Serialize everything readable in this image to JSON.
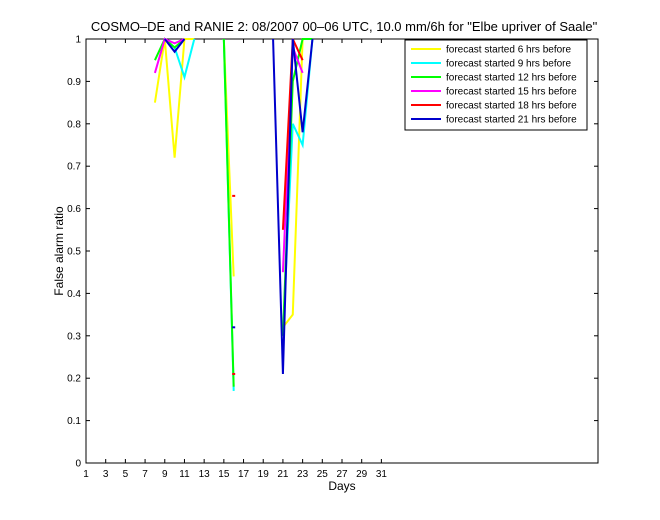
{
  "chart_data": {
    "type": "line",
    "title": "COSMO–DE and RANIE 2: 08/2007 00–06 UTC, 10.0 mm/6h for \"Elbe upriver of Saale\"",
    "xlabel": "Days",
    "ylabel": "False alarm ratio",
    "xlim": [
      1,
      53
    ],
    "ylim": [
      0,
      1
    ],
    "xticks": [
      1,
      3,
      5,
      7,
      9,
      11,
      13,
      15,
      17,
      19,
      21,
      23,
      25,
      27,
      29,
      31
    ],
    "yticks": [
      0,
      0.1,
      0.2,
      0.3,
      0.4,
      0.5,
      0.6,
      0.7,
      0.8,
      0.9,
      1
    ],
    "ytick_labels": [
      "0",
      "0.1",
      "0.2",
      "0.3",
      "0.4",
      "0.5",
      "0.6",
      "0.7",
      "0.8",
      "0.9",
      "1"
    ],
    "grid": false,
    "legend_position": "top-right",
    "series": [
      {
        "name": "forecast started 6 hrs before",
        "color": "#ffff00",
        "segments": [
          [
            [
              8,
              0.85
            ],
            [
              9,
              1.0
            ],
            [
              10,
              0.72
            ],
            [
              11,
              1.0
            ],
            [
              12,
              1.0
            ]
          ],
          [
            [
              15,
              1.0
            ],
            [
              16,
              0.44
            ]
          ],
          [
            [
              21,
              0.32
            ],
            [
              22,
              0.35
            ],
            [
              23,
              1.0
            ],
            [
              24,
              1.0
            ]
          ]
        ]
      },
      {
        "name": "forecast started 9 hrs before",
        "color": "#00ffff",
        "segments": [
          [
            [
              9,
              1.0
            ],
            [
              10,
              0.98
            ],
            [
              11,
              0.91
            ],
            [
              12,
              1.0
            ]
          ],
          [
            [
              15,
              1.0
            ],
            [
              16,
              0.17
            ]
          ],
          [
            [
              21,
              0.3
            ],
            [
              22,
              0.8
            ],
            [
              23,
              0.75
            ],
            [
              24,
              1.0
            ]
          ]
        ]
      },
      {
        "name": "forecast started 12 hrs before",
        "color": "#00ff00",
        "segments": [
          [
            [
              8,
              0.95
            ],
            [
              9,
              1.0
            ],
            [
              10,
              0.98
            ],
            [
              11,
              1.0
            ]
          ],
          [
            [
              15,
              1.0
            ],
            [
              16,
              0.18
            ]
          ],
          [
            [
              21,
              0.3
            ],
            [
              22,
              0.9
            ],
            [
              23,
              1.0
            ],
            [
              24,
              1.0
            ]
          ]
        ]
      },
      {
        "name": "forecast started 15 hrs before",
        "color": "#ff00ff",
        "segments": [
          [
            [
              8,
              0.92
            ],
            [
              9,
              1.0
            ],
            [
              10,
              0.99
            ],
            [
              11,
              1.0
            ]
          ],
          [
            [
              21,
              0.45
            ],
            [
              22,
              0.98
            ],
            [
              23,
              0.92
            ]
          ]
        ]
      },
      {
        "name": "forecast started 18 hrs before",
        "color": "#ff0000",
        "segments": [
          [
            [
              16,
              0.63
            ]
          ],
          [
            [
              16,
              0.21
            ]
          ],
          [
            [
              21,
              0.55
            ],
            [
              22,
              1.0
            ],
            [
              23,
              0.95
            ]
          ]
        ]
      },
      {
        "name": "forecast started 21 hrs before",
        "color": "#0000cc",
        "segments": [
          [
            [
              9,
              1.0
            ],
            [
              10,
              0.97
            ],
            [
              11,
              1.0
            ]
          ],
          [
            [
              16,
              0.32
            ]
          ],
          [
            [
              20,
              1.0
            ],
            [
              21,
              0.21
            ],
            [
              22,
              1.0
            ],
            [
              23,
              0.78
            ],
            [
              24,
              1.0
            ]
          ]
        ]
      }
    ]
  }
}
